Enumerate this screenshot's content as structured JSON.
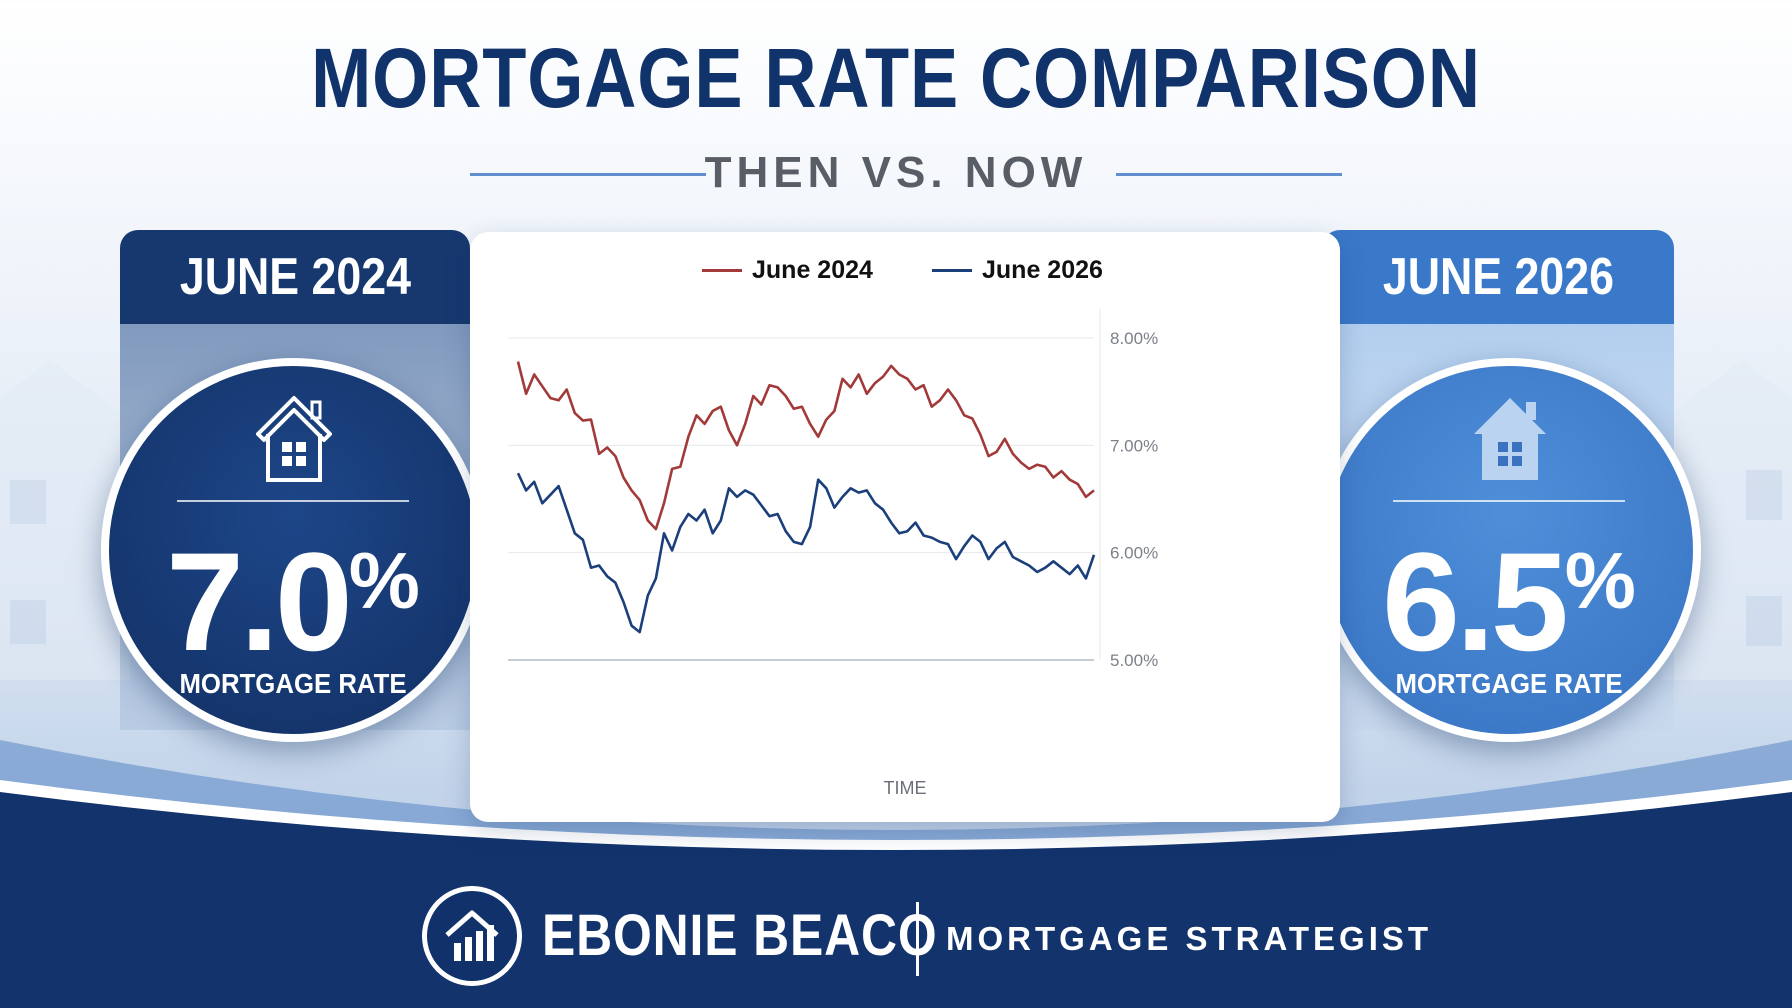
{
  "title": "MORTGAGE RATE COMPARISON",
  "subtitle": "THEN VS. NOW",
  "left_panel": {
    "heading": "JUNE 2024",
    "rate": "7.0",
    "rate_unit": "%",
    "caption": "MORTGAGE RATE",
    "icon": "house-icon"
  },
  "right_panel": {
    "heading": "JUNE 2026",
    "rate": "6.5",
    "rate_unit": "%",
    "caption": "MORTGAGE RATE",
    "icon": "house-icon"
  },
  "footer": {
    "brand_name": "EBONIE BEACO",
    "brand_role": "MORTGAGE STRATEGIST",
    "logo_icon": "house-chart-icon"
  },
  "colors": {
    "navy": "#10336b",
    "accent_blue": "#3a78c9",
    "series_2024": "#a33a3a",
    "series_2026": "#1b3f7a"
  },
  "chart_data": {
    "type": "line",
    "xlabel": "TIME",
    "ylabel": "",
    "ylim": [
      5.0,
      8.0
    ],
    "y_ticks": [
      "8.00%",
      "7.00%",
      "6.00%",
      "5.00%"
    ],
    "y_tick_values": [
      8.0,
      7.0,
      6.0,
      5.0
    ],
    "y_axis_side": "right",
    "grid": true,
    "legend": "top-center",
    "series": [
      {
        "name": "June 2024",
        "color": "#a33a3a",
        "values": [
          7.78,
          7.48,
          7.66,
          7.55,
          7.44,
          7.42,
          7.52,
          7.3,
          7.23,
          7.24,
          6.92,
          6.98,
          6.9,
          6.7,
          6.58,
          6.49,
          6.3,
          6.22,
          6.46,
          6.78,
          6.8,
          7.08,
          7.28,
          7.2,
          7.32,
          7.36,
          7.14,
          7.0,
          7.2,
          7.46,
          7.38,
          7.56,
          7.54,
          7.46,
          7.34,
          7.36,
          7.2,
          7.08,
          7.24,
          7.32,
          7.62,
          7.54,
          7.66,
          7.48,
          7.58,
          7.64,
          7.74,
          7.66,
          7.62,
          7.52,
          7.56,
          7.36,
          7.42,
          7.52,
          7.42,
          7.28,
          7.25,
          7.1,
          6.9,
          6.94,
          7.06,
          6.92,
          6.84,
          6.78,
          6.82,
          6.8,
          6.7,
          6.76,
          6.68,
          6.64,
          6.52,
          6.58
        ]
      },
      {
        "name": "June 2026",
        "color": "#1b3f7a",
        "values": [
          6.74,
          6.58,
          6.66,
          6.46,
          6.54,
          6.62,
          6.4,
          6.18,
          6.12,
          5.86,
          5.88,
          5.78,
          5.72,
          5.54,
          5.32,
          5.26,
          5.6,
          5.76,
          6.18,
          6.02,
          6.24,
          6.36,
          6.3,
          6.4,
          6.18,
          6.3,
          6.6,
          6.52,
          6.58,
          6.54,
          6.44,
          6.34,
          6.36,
          6.2,
          6.1,
          6.08,
          6.24,
          6.68,
          6.6,
          6.42,
          6.52,
          6.6,
          6.56,
          6.58,
          6.46,
          6.4,
          6.28,
          6.18,
          6.2,
          6.28,
          6.16,
          6.14,
          6.1,
          6.08,
          5.94,
          6.06,
          6.16,
          6.1,
          5.94,
          6.04,
          6.1,
          5.96,
          5.92,
          5.88,
          5.82,
          5.86,
          5.92,
          5.86,
          5.8,
          5.88,
          5.76,
          5.98
        ]
      }
    ]
  }
}
